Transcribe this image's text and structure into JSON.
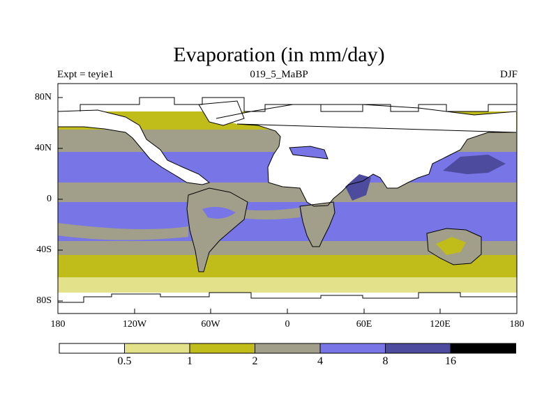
{
  "title": "Evaporation (in mm/day)",
  "subtitle_left": "Expt = teyie1",
  "subtitle_center": "019_5_MaBP",
  "subtitle_right": "DJF",
  "y_ticks": [
    "80N",
    "40N",
    "0",
    "40S",
    "80S"
  ],
  "x_ticks": [
    "180",
    "120W",
    "60W",
    "0",
    "60E",
    "120E",
    "180"
  ],
  "colorbar": {
    "labels": [
      "0.5",
      "1",
      "2",
      "4",
      "8",
      "16"
    ],
    "colors": [
      "#ffffff",
      "#e3e28a",
      "#c0bc1a",
      "#a19f89",
      "#7876e6",
      "#4d4b9e",
      "#000000"
    ]
  },
  "chart_data": {
    "type": "heatmap",
    "title": "Evaporation (in mm/day)",
    "variable": "Evaporation",
    "units": "mm/day",
    "season": "DJF",
    "experiment": "teyie1",
    "period": "019_5_MaBP",
    "x_range": [
      -180,
      180
    ],
    "y_range": [
      -90,
      90
    ],
    "levels": [
      0.5,
      1,
      2,
      4,
      8,
      16
    ],
    "colors": [
      "#ffffff",
      "#e3e28a",
      "#c0bc1a",
      "#a19f89",
      "#7876e6",
      "#4d4b9e",
      "#000000"
    ],
    "zonal_bands_ocean": [
      {
        "lat_range": [
          70,
          90
        ],
        "class": "<0.5"
      },
      {
        "lat_range": [
          55,
          70
        ],
        "class": "1-2"
      },
      {
        "lat_range": [
          35,
          55
        ],
        "class": "2-4"
      },
      {
        "lat_range": [
          10,
          35
        ],
        "class": "4-8"
      },
      {
        "lat_range": [
          -5,
          10
        ],
        "class": "2-4"
      },
      {
        "lat_range": [
          -35,
          -5
        ],
        "class": "4-8"
      },
      {
        "lat_range": [
          -45,
          -35
        ],
        "class": "2-4"
      },
      {
        "lat_range": [
          -60,
          -45
        ],
        "class": "1-2"
      },
      {
        "lat_range": [
          -75,
          -60
        ],
        "class": "0.5-1"
      },
      {
        "lat_range": [
          -90,
          -75
        ],
        "class": "<0.5"
      }
    ]
  }
}
